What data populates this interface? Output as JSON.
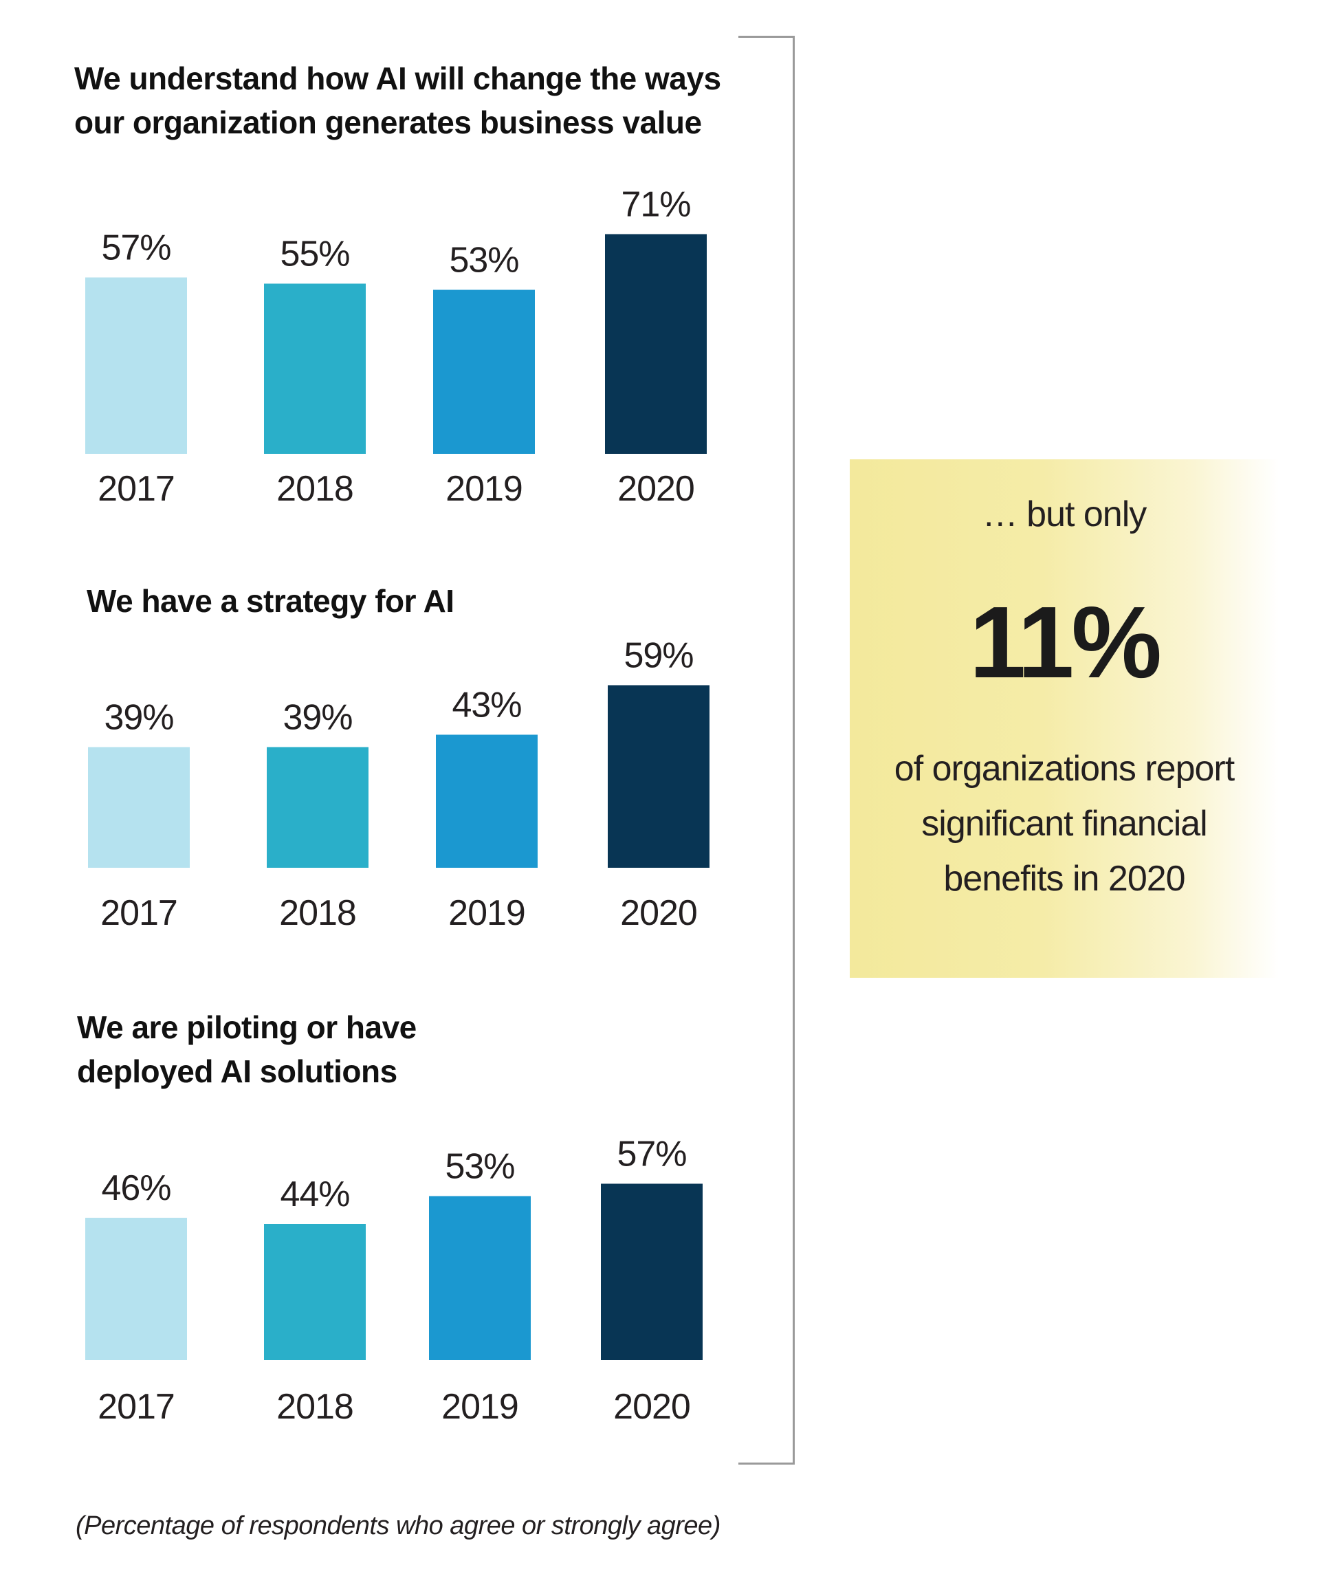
{
  "chart_data": [
    {
      "type": "bar",
      "title": "We understand how AI will change the ways our organization generates business value",
      "title_lines": [
        "We understand how AI will change the ways",
        "our organization generates business value"
      ],
      "categories": [
        "2017",
        "2018",
        "2019",
        "2020"
      ],
      "values": [
        57,
        55,
        53,
        71
      ],
      "value_labels": [
        "57%",
        "55%",
        "53%",
        "71%"
      ],
      "bar_colors": [
        "#b5e2ef",
        "#2aafc9",
        "#1b98d0",
        "#083554"
      ],
      "ylim": [
        0,
        100
      ],
      "grid": false
    },
    {
      "type": "bar",
      "title": "We have a strategy for AI",
      "title_lines": [
        "We have a strategy for AI"
      ],
      "categories": [
        "2017",
        "2018",
        "2019",
        "2020"
      ],
      "values": [
        39,
        39,
        43,
        59
      ],
      "value_labels": [
        "39%",
        "39%",
        "43%",
        "59%"
      ],
      "bar_colors": [
        "#b5e2ef",
        "#2aafc9",
        "#1b98d0",
        "#083554"
      ],
      "ylim": [
        0,
        100
      ],
      "grid": false
    },
    {
      "type": "bar",
      "title": "We are piloting or have deployed AI solutions",
      "title_lines": [
        "We are piloting or have",
        "deployed AI solutions"
      ],
      "categories": [
        "2017",
        "2018",
        "2019",
        "2020"
      ],
      "values": [
        46,
        44,
        53,
        57
      ],
      "value_labels": [
        "46%",
        "44%",
        "53%",
        "57%"
      ],
      "bar_colors": [
        "#b5e2ef",
        "#2aafc9",
        "#1b98d0",
        "#083554"
      ],
      "ylim": [
        0,
        100
      ],
      "grid": false
    }
  ],
  "callout": {
    "intro": "… but only",
    "figure": "11%",
    "description": "of organizations report significant financial benefits in 2020"
  },
  "footnote": "(Percentage of respondents who agree or strongly agree)"
}
